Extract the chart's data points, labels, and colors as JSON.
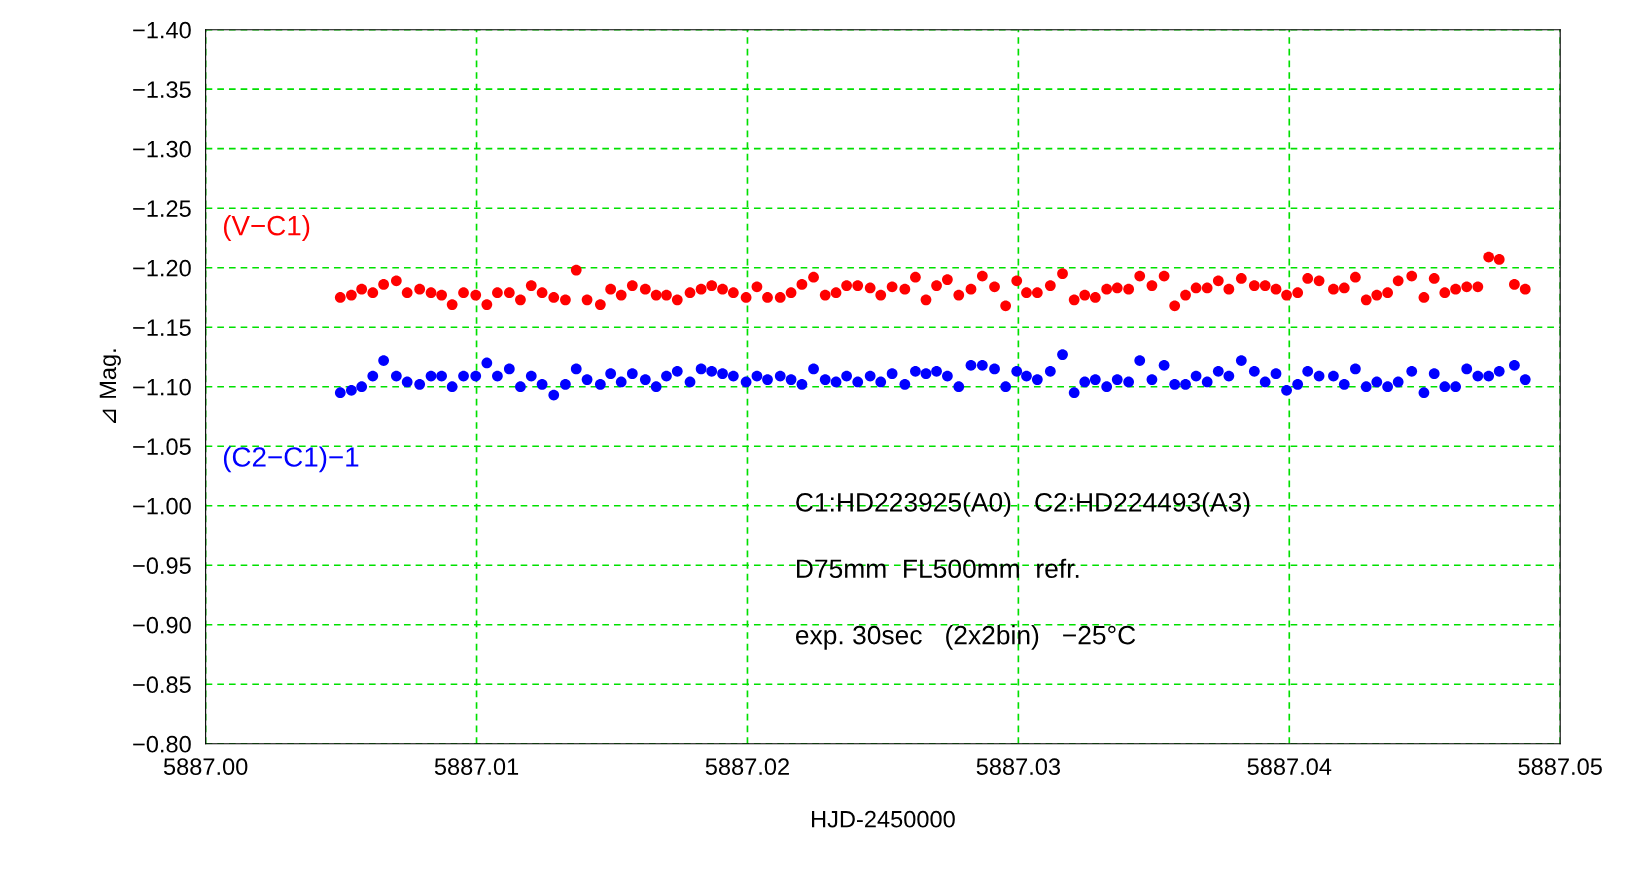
{
  "chart_data": {
    "type": "scatter",
    "xlabel": "HJD-2450000",
    "ylabel": "⊿ Mag.",
    "x": [
      5887.00497,
      5887.00538,
      5887.00576,
      5887.00617,
      5887.00657,
      5887.00704,
      5887.00744,
      5887.0079,
      5887.00832,
      5887.00871,
      5887.0091,
      5887.00952,
      5887.00997,
      5887.01038,
      5887.01077,
      5887.01121,
      5887.01162,
      5887.01202,
      5887.01242,
      5887.01285,
      5887.01328,
      5887.01368,
      5887.01408,
      5887.01457,
      5887.01495,
      5887.01534,
      5887.01575,
      5887.01623,
      5887.01663,
      5887.01701,
      5887.01741,
      5887.01788,
      5887.01829,
      5887.01868,
      5887.01908,
      5887.01948,
      5887.01995,
      5887.02035,
      5887.02074,
      5887.02121,
      5887.02161,
      5887.02201,
      5887.02244,
      5887.02287,
      5887.02327,
      5887.02366,
      5887.02407,
      5887.02453,
      5887.02492,
      5887.02534,
      5887.02581,
      5887.0262,
      5887.02659,
      5887.02698,
      5887.02738,
      5887.0278,
      5887.02825,
      5887.02867,
      5887.02912,
      5887.02953,
      5887.02994,
      5887.0303,
      5887.0307,
      5887.03118,
      5887.03163,
      5887.03206,
      5887.03245,
      5887.03284,
      5887.03326,
      5887.03365,
      5887.03407,
      5887.03448,
      5887.03493,
      5887.03538,
      5887.03577,
      5887.03617,
      5887.03656,
      5887.03697,
      5887.03738,
      5887.03777,
      5887.03823,
      5887.03871,
      5887.03911,
      5887.03951,
      5887.0399,
      5887.04031,
      5887.04068,
      5887.0411,
      5887.04163,
      5887.04203,
      5887.04244,
      5887.04284,
      5887.04323,
      5887.04363,
      5887.04402,
      5887.04452,
      5887.04497,
      5887.04535,
      5887.04574,
      5887.04614,
      5887.04655,
      5887.04696,
      5887.04736,
      5887.04775,
      5887.04831,
      5887.04871
    ],
    "series": [
      {
        "name": "(V−C1)",
        "color": "#ff0000",
        "values": [
          -1.175,
          -1.177,
          -1.182,
          -1.179,
          -1.186,
          -1.189,
          -1.179,
          -1.182,
          -1.179,
          -1.177,
          -1.169,
          -1.179,
          -1.177,
          -1.169,
          -1.179,
          -1.179,
          -1.173,
          -1.185,
          -1.179,
          -1.175,
          -1.173,
          -1.198,
          -1.173,
          -1.169,
          -1.182,
          -1.177,
          -1.185,
          -1.182,
          -1.177,
          -1.177,
          -1.173,
          -1.179,
          -1.182,
          -1.185,
          -1.182,
          -1.179,
          -1.175,
          -1.184,
          -1.175,
          -1.175,
          -1.179,
          -1.186,
          -1.192,
          -1.177,
          -1.179,
          -1.185,
          -1.185,
          -1.183,
          -1.177,
          -1.184,
          -1.182,
          -1.192,
          -1.173,
          -1.185,
          -1.19,
          -1.177,
          -1.182,
          -1.193,
          -1.184,
          -1.168,
          -1.189,
          -1.179,
          -1.179,
          -1.185,
          -1.195,
          -1.173,
          -1.177,
          -1.175,
          -1.182,
          -1.183,
          -1.182,
          -1.193,
          -1.185,
          -1.193,
          -1.168,
          -1.177,
          -1.183,
          -1.183,
          -1.189,
          -1.182,
          -1.191,
          -1.185,
          -1.185,
          -1.182,
          -1.177,
          -1.179,
          -1.191,
          -1.189,
          -1.182,
          -1.183,
          -1.192,
          -1.173,
          -1.177,
          -1.179,
          -1.189,
          -1.193,
          -1.175,
          -1.191,
          -1.179,
          -1.182,
          -1.184,
          -1.184,
          -1.209,
          -1.207,
          -1.186,
          -1.182
        ]
      },
      {
        "name": "(C2−C1)−1",
        "color": "#0000ff",
        "values": [
          -1.095,
          -1.097,
          -1.1,
          -1.109,
          -1.122,
          -1.109,
          -1.104,
          -1.102,
          -1.109,
          -1.109,
          -1.1,
          -1.109,
          -1.109,
          -1.12,
          -1.109,
          -1.115,
          -1.1,
          -1.109,
          -1.102,
          -1.093,
          -1.102,
          -1.115,
          -1.106,
          -1.102,
          -1.111,
          -1.104,
          -1.111,
          -1.106,
          -1.1,
          -1.109,
          -1.113,
          -1.104,
          -1.115,
          -1.113,
          -1.111,
          -1.109,
          -1.104,
          -1.109,
          -1.106,
          -1.109,
          -1.106,
          -1.102,
          -1.115,
          -1.106,
          -1.104,
          -1.109,
          -1.104,
          -1.109,
          -1.104,
          -1.111,
          -1.102,
          -1.113,
          -1.111,
          -1.113,
          -1.109,
          -1.1,
          -1.118,
          -1.118,
          -1.115,
          -1.1,
          -1.113,
          -1.109,
          -1.106,
          -1.113,
          -1.127,
          -1.095,
          -1.104,
          -1.106,
          -1.1,
          -1.106,
          -1.104,
          -1.122,
          -1.106,
          -1.118,
          -1.102,
          -1.102,
          -1.109,
          -1.104,
          -1.113,
          -1.109,
          -1.122,
          -1.113,
          -1.104,
          -1.111,
          -1.097,
          -1.102,
          -1.113,
          -1.109,
          -1.109,
          -1.102,
          -1.115,
          -1.1,
          -1.104,
          -1.1,
          -1.104,
          -1.113,
          -1.095,
          -1.111,
          -1.1,
          -1.1,
          -1.115,
          -1.109,
          -1.109,
          -1.113,
          -1.118,
          -1.106
        ]
      }
    ],
    "xlim": [
      5887.0,
      5887.05
    ],
    "xticks": [
      {
        "value": 5887.0,
        "label": "5887.00"
      },
      {
        "value": 5887.01,
        "label": "5887.01"
      },
      {
        "value": 5887.02,
        "label": "5887.02"
      },
      {
        "value": 5887.03,
        "label": "5887.03"
      },
      {
        "value": 5887.04,
        "label": "5887.04"
      },
      {
        "value": 5887.05,
        "label": "5887.05"
      }
    ],
    "ylim": [
      -0.8,
      -1.4
    ],
    "yticks": [
      {
        "value": -1.4,
        "label": "−1.40"
      },
      {
        "value": -1.35,
        "label": "−1.35"
      },
      {
        "value": -1.3,
        "label": "−1.30"
      },
      {
        "value": -1.25,
        "label": "−1.25"
      },
      {
        "value": -1.2,
        "label": "−1.20"
      },
      {
        "value": -1.15,
        "label": "−1.15"
      },
      {
        "value": -1.1,
        "label": "−1.10"
      },
      {
        "value": -1.05,
        "label": "−1.05"
      },
      {
        "value": -1.0,
        "label": "−1.00"
      },
      {
        "value": -0.95,
        "label": "−0.95"
      },
      {
        "value": -0.9,
        "label": "−0.90"
      },
      {
        "value": -0.85,
        "label": "−0.85"
      },
      {
        "value": -0.8,
        "label": "−0.80"
      }
    ],
    "annotations": [
      "C1:HD223925(A0)   C2:HD224493(A3)",
      "D75mm  FL500mm  refr.",
      "exp. 30sec   (2x2bin)   −25°C"
    ],
    "grid": true,
    "legend": false,
    "marker": "circle"
  }
}
